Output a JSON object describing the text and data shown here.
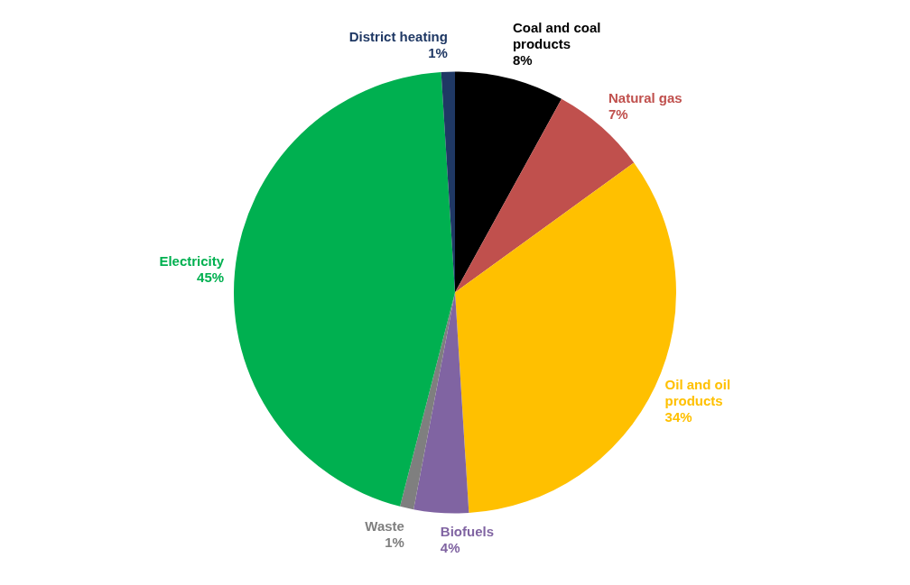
{
  "chart_data": {
    "type": "pie",
    "categories": [
      "Coal and coal products",
      "Natural gas",
      "Oil and oil products",
      "Biofuels",
      "Waste",
      "Electricity",
      "District heating"
    ],
    "values": [
      8,
      7,
      34,
      4,
      1,
      45,
      1
    ],
    "value_labels": [
      "8%",
      "7%",
      "34%",
      "4%",
      "1%",
      "45%",
      "1%"
    ],
    "colors": [
      "#000000",
      "#c0504d",
      "#ffc000",
      "#8064a2",
      "#7f7f7f",
      "#00b050",
      "#1f3864"
    ]
  }
}
